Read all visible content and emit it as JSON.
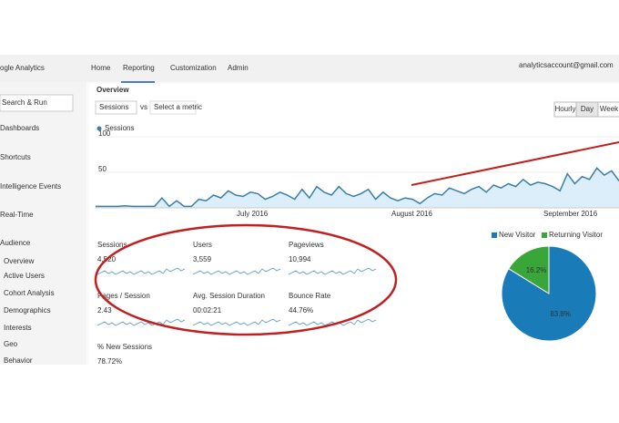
{
  "header": {
    "logo": "ogle Analytics",
    "nav": [
      "Home",
      "Reporting",
      "Customization",
      "Admin"
    ],
    "account": "analyticsaccount@gmail.com"
  },
  "sidebar": {
    "search": "Search & Run",
    "items": [
      "Dashboards",
      "Shortcuts",
      "Intelligence Events",
      "Real-Time",
      "Audience",
      "Overview",
      "Active Users",
      "Cohort Analysis",
      "Demographics",
      "Interests",
      "Geo",
      "Behavior"
    ]
  },
  "page": {
    "title": "Overview",
    "metric_select": "Sessions",
    "vs": "vs",
    "compare_select": "Select a metric",
    "buttons": [
      "Hourly",
      "Day",
      "Week"
    ]
  },
  "sessions_chart": {
    "legend": "Sessions",
    "values": [
      2,
      2,
      2,
      2,
      3,
      2,
      2,
      2,
      2,
      14,
      2,
      10,
      2,
      2,
      12,
      10,
      18,
      14,
      24,
      18,
      16,
      22,
      20,
      12,
      16,
      22,
      18,
      12,
      26,
      14,
      30,
      22,
      18,
      30,
      20,
      16,
      20,
      26,
      12,
      22,
      14,
      10,
      14,
      12,
      6,
      14,
      20,
      18,
      28,
      24,
      20,
      26,
      30,
      22,
      32,
      28,
      34,
      30,
      40,
      32,
      36,
      34,
      30,
      24,
      48,
      34,
      44,
      40,
      56,
      46,
      52,
      38
    ],
    "ylim": [
      0,
      100
    ],
    "yticks": [
      50,
      100
    ],
    "x_labels": [
      "July 2016",
      "August 2016",
      "September 2016"
    ],
    "color": "#3b7ea8"
  },
  "metrics": [
    {
      "label": "Sessions",
      "value": "4,520"
    },
    {
      "label": "Users",
      "value": "3,559"
    },
    {
      "label": "Pageviews",
      "value": "10,994"
    },
    {
      "label": "Pages / Session",
      "value": "2.43"
    },
    {
      "label": "Avg. Session Duration",
      "value": "00:02:21"
    },
    {
      "label": "Bounce Rate",
      "value": "44.76%"
    },
    {
      "label": "% New Sessions",
      "value": "78.72%"
    }
  ],
  "pie": {
    "series": [
      {
        "name": "New Visitor",
        "color": "#1a7bb9",
        "value": 83.8,
        "label": "83.8%"
      },
      {
        "name": "Returning Visitor",
        "color": "#3aa63a",
        "value": 16.2,
        "label": "16.2%"
      }
    ]
  }
}
